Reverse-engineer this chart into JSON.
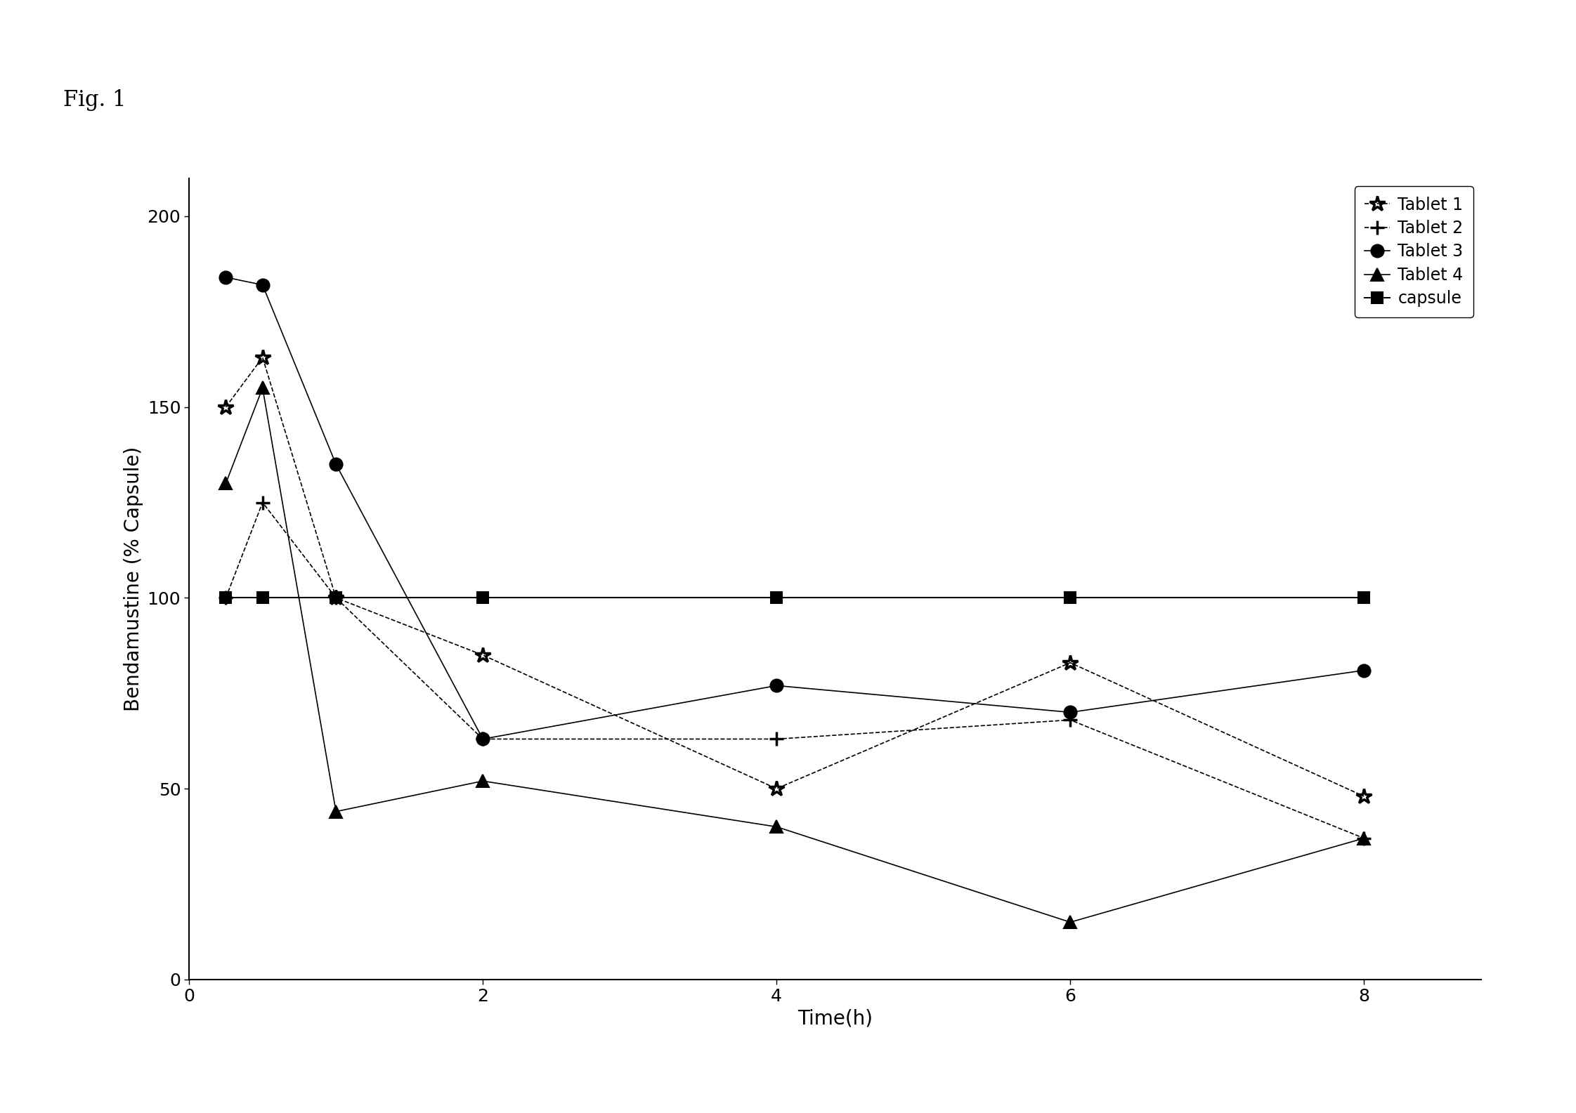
{
  "fig_label": "Fig. 1",
  "xlabel": "Time(h)",
  "ylabel": "Bendamustine (% Capsule)",
  "xlim": [
    0,
    8.8
  ],
  "ylim": [
    0,
    210
  ],
  "xticks": [
    0,
    2,
    4,
    6,
    8
  ],
  "yticks": [
    0,
    50,
    100,
    150,
    200
  ],
  "series": [
    {
      "label": "Tablet 1",
      "marker": "*",
      "linestyle": "--",
      "color": "#000000",
      "markersize": 16,
      "linewidth": 1.2,
      "x": [
        0.25,
        0.5,
        1,
        2,
        4,
        6,
        8
      ],
      "y": [
        150,
        163,
        100,
        85,
        50,
        83,
        48
      ]
    },
    {
      "label": "Tablet 2",
      "marker": "+",
      "linestyle": "--",
      "color": "#000000",
      "markersize": 14,
      "linewidth": 1.2,
      "x": [
        0.25,
        0.5,
        1,
        2,
        4,
        6,
        8
      ],
      "y": [
        100,
        125,
        100,
        63,
        63,
        68,
        37
      ]
    },
    {
      "label": "Tablet 3",
      "marker": "o",
      "linestyle": "-",
      "color": "#000000",
      "markersize": 13,
      "linewidth": 1.2,
      "x": [
        0.25,
        0.5,
        1,
        2,
        4,
        6,
        8
      ],
      "y": [
        184,
        182,
        135,
        63,
        77,
        70,
        81
      ]
    },
    {
      "label": "Tablet 4",
      "marker": "^",
      "linestyle": "-",
      "color": "#000000",
      "markersize": 13,
      "linewidth": 1.2,
      "x": [
        0.25,
        0.5,
        1,
        2,
        4,
        6,
        8
      ],
      "y": [
        130,
        155,
        44,
        52,
        40,
        15,
        37
      ]
    },
    {
      "label": "capsule",
      "marker": "s",
      "linestyle": "-",
      "color": "#000000",
      "markersize": 12,
      "linewidth": 1.5,
      "x": [
        0.25,
        0.5,
        1,
        2,
        4,
        6,
        8
      ],
      "y": [
        100,
        100,
        100,
        100,
        100,
        100,
        100
      ]
    }
  ],
  "background_color": "#ffffff",
  "fig_label_fontsize": 22,
  "axis_label_fontsize": 20,
  "tick_fontsize": 18,
  "legend_fontsize": 17
}
